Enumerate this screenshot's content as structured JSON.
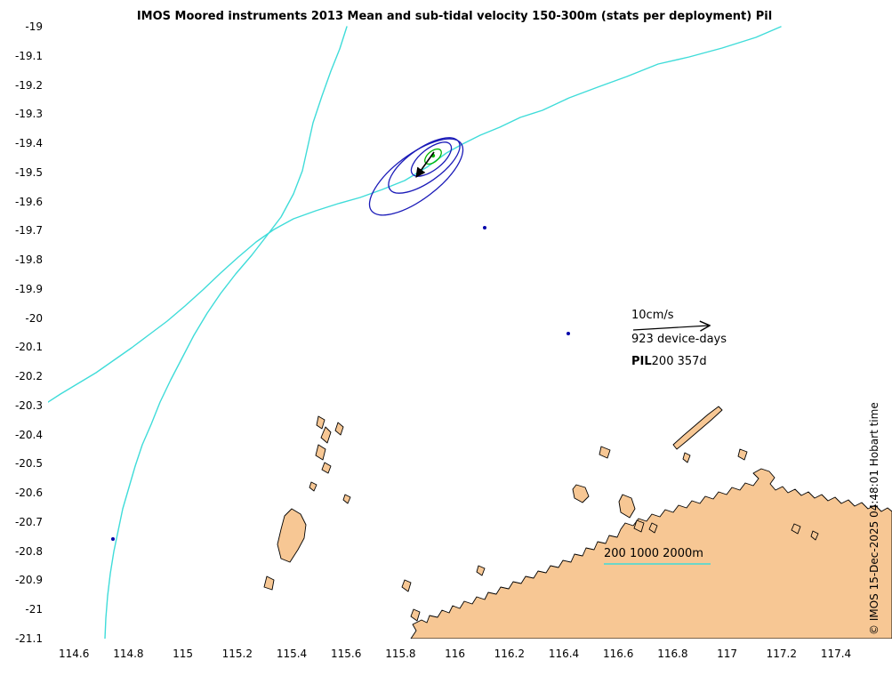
{
  "title": "IMOS Moored instruments 2013 Mean and sub-tidal velocity 150-300m (stats per deployment) Pil",
  "axes": {
    "x_ticks": [
      "114.6",
      "114.8",
      "115",
      "115.2",
      "115.4",
      "115.6",
      "115.8",
      "116",
      "116.2",
      "116.4",
      "116.6",
      "116.8",
      "117",
      "117.2",
      "117.4"
    ],
    "y_ticks": [
      "-19",
      "-19.1",
      "-19.2",
      "-19.3",
      "-19.4",
      "-19.5",
      "-19.6",
      "-19.7",
      "-19.8",
      "-19.9",
      "-20",
      "-20.1",
      "-20.2",
      "-20.3",
      "-20.4",
      "-20.5",
      "-20.6",
      "-20.7",
      "-20.8",
      "-20.9",
      "-21",
      "-21.1"
    ]
  },
  "vector_legend": {
    "scale": "10cm/s",
    "device_days": "923 device-days",
    "station_prefix": "PIL",
    "station_suffix": "200 357d"
  },
  "contour_legend": "200 1000 2000m",
  "copyright": "© IMOS 15-Dec-2025 04:48:01 Hobart time",
  "colors": {
    "contour": "#3fdcd9",
    "ellipse": "#1a1ab8",
    "green_marker": "#00b300",
    "land": "#f7c794",
    "coast": "#000000",
    "dot": "#0000aa",
    "vector": "#000000"
  },
  "map_data": {
    "station": "PIL200",
    "deployment_days": 357,
    "device_days": 923,
    "scale_cm_per_s": 10,
    "depth_range": "150-300m",
    "year": 2013,
    "region": "Pil",
    "mooring_lon": 115.92,
    "mooring_lat": -19.44,
    "contour_depths_m": [
      200,
      1000,
      2000
    ],
    "lon_range": [
      114.51,
      117.6
    ],
    "lat_range": [
      -21.1,
      -19.0
    ]
  }
}
